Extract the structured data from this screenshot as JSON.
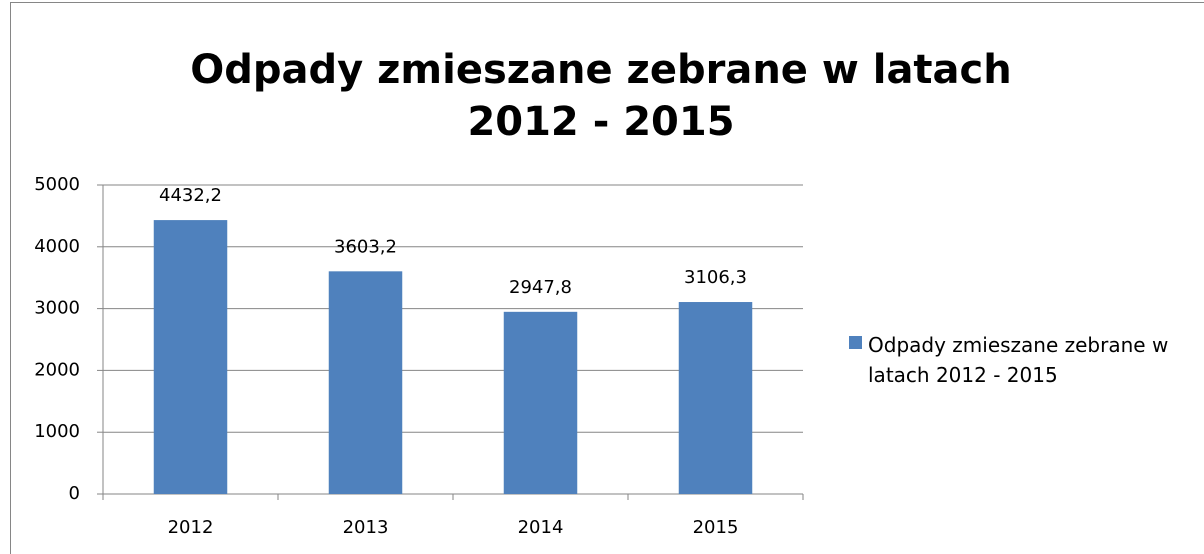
{
  "chart_data": {
    "type": "bar",
    "title": "Odpady zmieszane zebrane w latach 2012 - 2015",
    "categories": [
      "2012",
      "2013",
      "2014",
      "2015"
    ],
    "series": [
      {
        "name": "Odpady zmieszane zebrane w latach 2012 - 2015",
        "color": "#4f81bd",
        "values": [
          4432.2,
          3603.2,
          2947.8,
          3106.3
        ],
        "value_labels": [
          "4432,2",
          "3603,2",
          "2947,8",
          "3106,3"
        ]
      }
    ],
    "ylim": [
      0,
      5000
    ],
    "yticks": [
      0,
      1000,
      2000,
      3000,
      4000,
      5000
    ],
    "grid": true,
    "legend": "right"
  }
}
